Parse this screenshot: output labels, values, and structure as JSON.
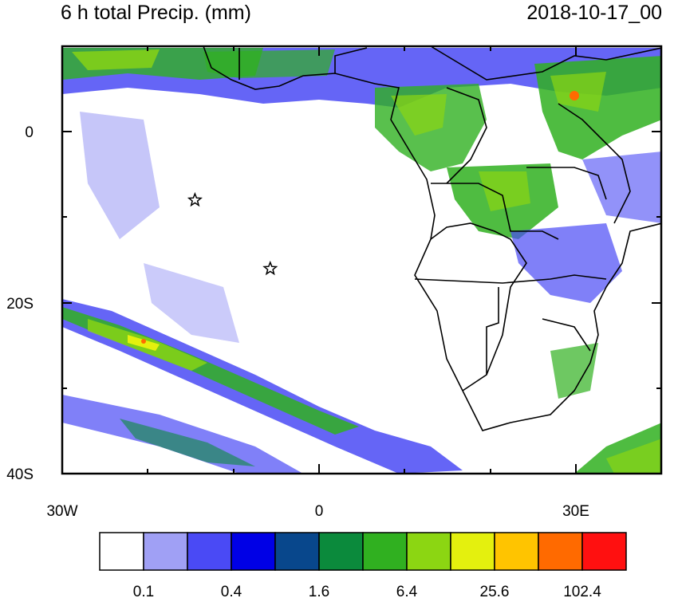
{
  "header": {
    "title": "6 h total Precip. (mm)",
    "date": "2018-10-17_00"
  },
  "axes": {
    "lat_labels": [
      "0",
      "20S",
      "40S"
    ],
    "lon_labels": [
      "30W",
      "0",
      "30E"
    ]
  },
  "colorbar": {
    "colors": [
      "#ffffff",
      "#a0a0f5",
      "#4a4af5",
      "#0000e6",
      "#08478c",
      "#0b8a3c",
      "#30b020",
      "#8cd612",
      "#e4f00e",
      "#ffc400",
      "#ff6a00",
      "#ff1010"
    ],
    "labels": [
      "0.1",
      "0.4",
      "1.6",
      "6.4",
      "25.6",
      "102.4"
    ]
  },
  "markers": [
    {
      "name": "star-marker-1",
      "lon": -14.5,
      "lat": -8
    },
    {
      "name": "star-marker-2",
      "lon": -5.7,
      "lat": -16
    }
  ]
}
